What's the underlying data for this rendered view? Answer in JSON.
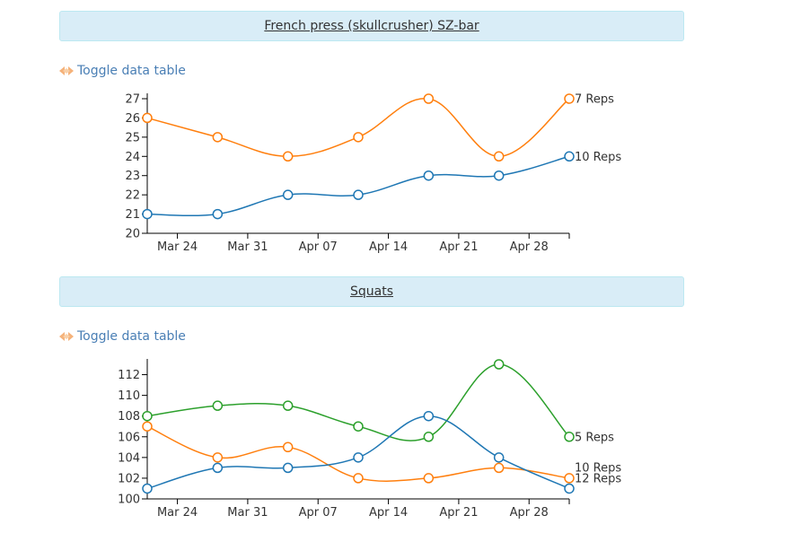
{
  "sections": [
    {
      "title": "French press (skullcrusher) SZ-bar",
      "toggle_label": "Toggle data table"
    },
    {
      "title": "Squats",
      "toggle_label": "Toggle data table"
    }
  ],
  "chart_data": [
    {
      "type": "line",
      "title": "",
      "x": [
        "Mar 21",
        "Mar 28",
        "Apr 04",
        "Apr 11",
        "Apr 18",
        "Apr 25",
        "May 02"
      ],
      "xticks": [
        "Mar 24",
        "Mar 31",
        "Apr 07",
        "Apr 14",
        "Apr 21",
        "Apr 28"
      ],
      "ylim": [
        20,
        27
      ],
      "yticks": [
        20,
        21,
        22,
        23,
        24,
        25,
        26,
        27
      ],
      "series": [
        {
          "name": "7 Reps",
          "color": "#ff7f0e",
          "values": [
            26,
            25,
            24,
            25,
            27,
            24,
            27
          ]
        },
        {
          "name": "10 Reps",
          "color": "#1f77b4",
          "values": [
            21,
            21,
            22,
            22,
            23,
            23,
            24
          ]
        }
      ]
    },
    {
      "type": "line",
      "title": "",
      "x": [
        "Mar 21",
        "Mar 28",
        "Apr 04",
        "Apr 11",
        "Apr 18",
        "Apr 25",
        "May 02"
      ],
      "xticks": [
        "Mar 24",
        "Mar 31",
        "Apr 07",
        "Apr 14",
        "Apr 21",
        "Apr 28"
      ],
      "ylim": [
        100,
        113
      ],
      "yticks": [
        100,
        102,
        104,
        106,
        108,
        110,
        112
      ],
      "series": [
        {
          "name": "5 Reps",
          "color": "#2ca02c",
          "values": [
            108,
            109,
            109,
            107,
            106,
            113,
            106
          ]
        },
        {
          "name": "12 Reps",
          "color": "#ff7f0e",
          "values": [
            107,
            104,
            105,
            102,
            102,
            103,
            102
          ]
        },
        {
          "name": "10 Reps",
          "color": "#1f77b4",
          "values": [
            101,
            103,
            103,
            104,
            108,
            104,
            101
          ]
        }
      ]
    }
  ]
}
